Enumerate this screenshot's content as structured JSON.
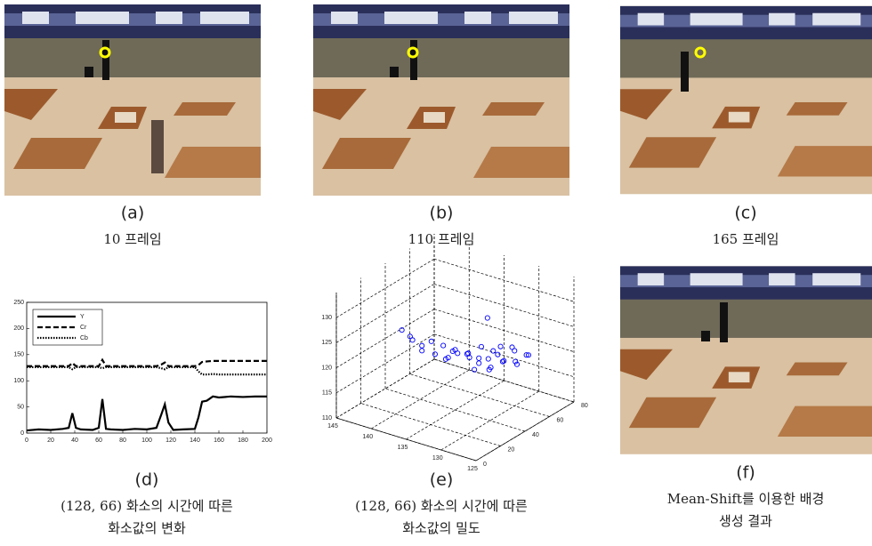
{
  "panels": [
    {
      "label": "(a)",
      "caption": [
        "10 프레임"
      ]
    },
    {
      "label": "(b)",
      "caption": [
        "110 프레임"
      ]
    },
    {
      "label": "(c)",
      "caption": [
        "165 프레임"
      ]
    },
    {
      "label": "(d)",
      "caption": [
        "(128, 66) 화소의 시간에 따른",
        "화소값의 변화"
      ]
    },
    {
      "label": "(e)",
      "caption": [
        "(128, 66) 화소의 시간에 따른",
        "화소값의 밀도"
      ]
    },
    {
      "label": "(f)",
      "caption": [
        "Mean-Shift를 이용한 배경",
        "생성 결과"
      ]
    }
  ],
  "chart_data": [
    {
      "type": "line",
      "x": [
        0,
        10,
        20,
        30,
        35,
        38,
        41,
        45,
        55,
        60,
        63,
        66,
        70,
        80,
        90,
        100,
        108,
        112,
        115,
        118,
        122,
        130,
        140,
        143,
        146,
        150,
        155,
        160,
        170,
        180,
        190,
        200
      ],
      "series": [
        {
          "name": "Y",
          "color": "#000000",
          "dash": "solid",
          "values": [
            5,
            7,
            6,
            8,
            10,
            38,
            10,
            7,
            6,
            10,
            65,
            8,
            7,
            6,
            8,
            7,
            10,
            35,
            55,
            20,
            6,
            7,
            8,
            30,
            60,
            62,
            70,
            68,
            70,
            69,
            70,
            70
          ]
        },
        {
          "name": "Cr",
          "color": "#000000",
          "dash": "dashed",
          "values": [
            128,
            128,
            128,
            128,
            128,
            134,
            128,
            128,
            128,
            128,
            140,
            128,
            128,
            128,
            128,
            128,
            128,
            131,
            135,
            128,
            128,
            128,
            128,
            130,
            136,
            137,
            138,
            138,
            138,
            138,
            138,
            138
          ]
        },
        {
          "name": "Cb",
          "color": "#000000",
          "dash": "dotted",
          "values": [
            126,
            126,
            126,
            126,
            126,
            122,
            126,
            126,
            126,
            126,
            124,
            126,
            126,
            126,
            126,
            126,
            126,
            124,
            122,
            126,
            126,
            126,
            126,
            118,
            112,
            112,
            113,
            112,
            112,
            112,
            112,
            112
          ]
        }
      ],
      "xlim": [
        0,
        200
      ],
      "xticks": [
        0,
        20,
        40,
        60,
        80,
        100,
        120,
        140,
        160,
        180,
        200
      ],
      "ylim": [
        0,
        250
      ],
      "yticks": [
        0,
        50,
        100,
        150,
        200,
        250
      ],
      "legend": "upper-left"
    },
    {
      "type": "scatter3d",
      "color": "#0000ff",
      "x": [
        128,
        129,
        130,
        131,
        132,
        133,
        134,
        135,
        136,
        137,
        138,
        139,
        140,
        130,
        131,
        132,
        133,
        134,
        135,
        136,
        129,
        130,
        131,
        132,
        133,
        134,
        135,
        137,
        138,
        139,
        133,
        134,
        136,
        131,
        132
      ],
      "y": [
        60,
        55,
        58,
        52,
        50,
        48,
        45,
        40,
        38,
        35,
        30,
        28,
        25,
        62,
        57,
        54,
        50,
        46,
        42,
        36,
        64,
        60,
        56,
        52,
        48,
        44,
        38,
        32,
        30,
        26,
        55,
        50,
        40,
        45,
        60
      ],
      "z": [
        121,
        120,
        122,
        121,
        120,
        119,
        121,
        122,
        120,
        121,
        123,
        124,
        126,
        118,
        119,
        121,
        122,
        120,
        121,
        123,
        120,
        121,
        119,
        118,
        120,
        121,
        122,
        124,
        122,
        125,
        127,
        117,
        120,
        119,
        121
      ],
      "xlim": [
        125,
        145
      ],
      "xticks": [
        125,
        130,
        135,
        140,
        145
      ],
      "ylim": [
        0,
        80
      ],
      "yticks": [
        0,
        20,
        40,
        60,
        80
      ],
      "zlim": [
        110,
        135
      ],
      "zticks": [
        110,
        115,
        120,
        125,
        130
      ]
    }
  ]
}
